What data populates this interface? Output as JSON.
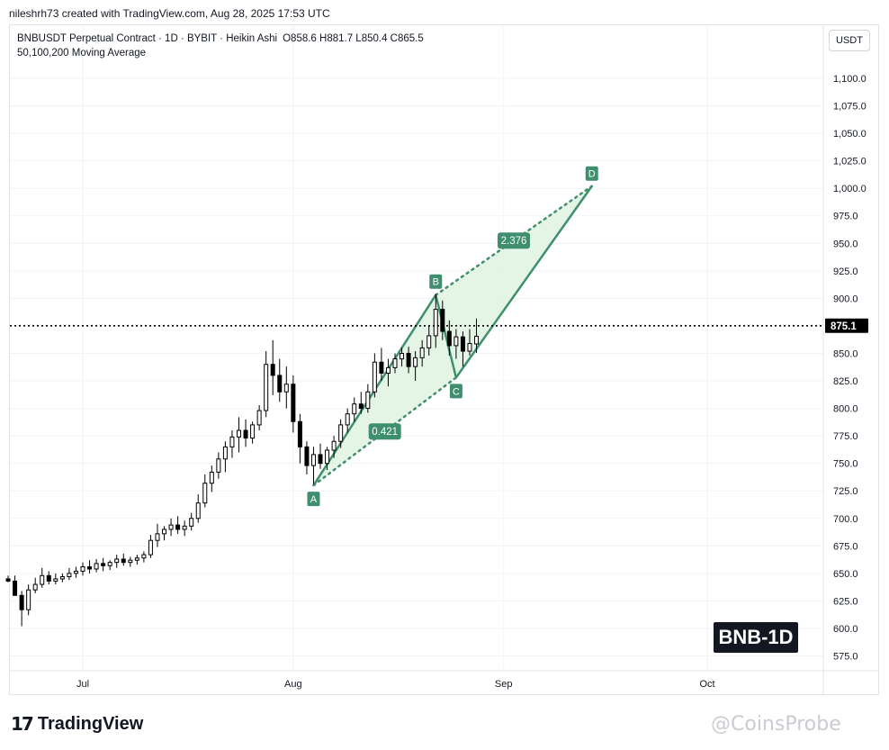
{
  "header": {
    "attribution": "nileshrh73 created with TradingView.com, Aug 28, 2025 17:53 UTC"
  },
  "legend": {
    "symbol_line": "BNBUSDT Perpetual Contract · 1D · BYBIT · Heikin Ashi",
    "ohlc": "O858.6  H881.7  L850.4  C865.5",
    "indicator": "50,100,200 Moving Average"
  },
  "currency_button": "USDT",
  "price_label": "875.1",
  "badge": "BNB-1D",
  "footer": {
    "brand": "TradingView",
    "watermark": "@CoinsProbe"
  },
  "colors": {
    "bull": "#ffffff",
    "bear": "#000000",
    "pattern": "#3f8f6e",
    "pattern_fill": "#dff2df"
  },
  "chart_data": {
    "type": "candlestick",
    "title": "BNBUSDT Perpetual Contract · 1D · BYBIT · Heikin Ashi",
    "y_ticks": [
      "1,100.0",
      "1,075.0",
      "1,050.0",
      "1,025.0",
      "1,000.0",
      "975.0",
      "950.0",
      "925.0",
      "900.0",
      "875.0",
      "850.0",
      "825.0",
      "800.0",
      "775.0",
      "750.0",
      "725.0",
      "700.0",
      "675.0",
      "650.0",
      "625.0",
      "600.0",
      "575.0"
    ],
    "y_tick_values": [
      1100,
      1075,
      1050,
      1025,
      1000,
      975,
      950,
      925,
      900,
      875,
      850,
      825,
      800,
      775,
      750,
      725,
      700,
      675,
      650,
      625,
      600,
      575
    ],
    "x_ticks": [
      "Jul",
      "Aug",
      "Sep",
      "Oct"
    ],
    "x_tick_dates": [
      "2025-07-01",
      "2025-08-01",
      "2025-09-01",
      "2025-10-01"
    ],
    "ylim": [
      562,
      1125
    ],
    "xlim": [
      "2025-06-20",
      "2025-10-25"
    ],
    "current_price": 875.1,
    "candles": [
      {
        "date": "2025-06-20",
        "o": 645,
        "h": 648,
        "l": 642,
        "c": 643
      },
      {
        "date": "2025-06-21",
        "o": 643,
        "h": 648,
        "l": 635,
        "c": 630
      },
      {
        "date": "2025-06-22",
        "o": 630,
        "h": 634,
        "l": 602,
        "c": 617
      },
      {
        "date": "2025-06-23",
        "o": 617,
        "h": 640,
        "l": 612,
        "c": 635
      },
      {
        "date": "2025-06-24",
        "o": 635,
        "h": 646,
        "l": 632,
        "c": 640
      },
      {
        "date": "2025-06-25",
        "o": 640,
        "h": 655,
        "l": 637,
        "c": 648
      },
      {
        "date": "2025-06-26",
        "o": 648,
        "h": 652,
        "l": 640,
        "c": 643
      },
      {
        "date": "2025-06-27",
        "o": 643,
        "h": 650,
        "l": 640,
        "c": 645
      },
      {
        "date": "2025-06-28",
        "o": 645,
        "h": 650,
        "l": 642,
        "c": 647
      },
      {
        "date": "2025-06-29",
        "o": 647,
        "h": 655,
        "l": 644,
        "c": 650
      },
      {
        "date": "2025-06-30",
        "o": 650,
        "h": 656,
        "l": 646,
        "c": 652
      },
      {
        "date": "2025-07-01",
        "o": 652,
        "h": 660,
        "l": 648,
        "c": 656
      },
      {
        "date": "2025-07-02",
        "o": 656,
        "h": 662,
        "l": 650,
        "c": 654
      },
      {
        "date": "2025-07-03",
        "o": 654,
        "h": 663,
        "l": 651,
        "c": 659
      },
      {
        "date": "2025-07-04",
        "o": 659,
        "h": 664,
        "l": 652,
        "c": 657
      },
      {
        "date": "2025-07-05",
        "o": 657,
        "h": 662,
        "l": 653,
        "c": 660
      },
      {
        "date": "2025-07-06",
        "o": 660,
        "h": 667,
        "l": 655,
        "c": 663
      },
      {
        "date": "2025-07-07",
        "o": 663,
        "h": 668,
        "l": 657,
        "c": 660
      },
      {
        "date": "2025-07-08",
        "o": 660,
        "h": 665,
        "l": 656,
        "c": 662
      },
      {
        "date": "2025-07-09",
        "o": 662,
        "h": 667,
        "l": 658,
        "c": 664
      },
      {
        "date": "2025-07-10",
        "o": 664,
        "h": 670,
        "l": 660,
        "c": 667
      },
      {
        "date": "2025-07-11",
        "o": 667,
        "h": 685,
        "l": 664,
        "c": 680
      },
      {
        "date": "2025-07-12",
        "o": 680,
        "h": 695,
        "l": 674,
        "c": 686
      },
      {
        "date": "2025-07-13",
        "o": 686,
        "h": 693,
        "l": 680,
        "c": 690
      },
      {
        "date": "2025-07-14",
        "o": 690,
        "h": 700,
        "l": 684,
        "c": 694
      },
      {
        "date": "2025-07-15",
        "o": 694,
        "h": 702,
        "l": 686,
        "c": 690
      },
      {
        "date": "2025-07-16",
        "o": 690,
        "h": 698,
        "l": 684,
        "c": 693
      },
      {
        "date": "2025-07-17",
        "o": 693,
        "h": 705,
        "l": 689,
        "c": 700
      },
      {
        "date": "2025-07-18",
        "o": 700,
        "h": 722,
        "l": 696,
        "c": 714
      },
      {
        "date": "2025-07-19",
        "o": 714,
        "h": 740,
        "l": 710,
        "c": 732
      },
      {
        "date": "2025-07-20",
        "o": 732,
        "h": 748,
        "l": 724,
        "c": 742
      },
      {
        "date": "2025-07-21",
        "o": 742,
        "h": 760,
        "l": 736,
        "c": 754
      },
      {
        "date": "2025-07-22",
        "o": 754,
        "h": 770,
        "l": 742,
        "c": 765
      },
      {
        "date": "2025-07-23",
        "o": 765,
        "h": 780,
        "l": 755,
        "c": 774
      },
      {
        "date": "2025-07-24",
        "o": 774,
        "h": 792,
        "l": 760,
        "c": 780
      },
      {
        "date": "2025-07-25",
        "o": 780,
        "h": 790,
        "l": 765,
        "c": 773
      },
      {
        "date": "2025-07-26",
        "o": 773,
        "h": 788,
        "l": 768,
        "c": 785
      },
      {
        "date": "2025-07-27",
        "o": 785,
        "h": 803,
        "l": 780,
        "c": 798
      },
      {
        "date": "2025-07-28",
        "o": 798,
        "h": 852,
        "l": 792,
        "c": 840
      },
      {
        "date": "2025-07-29",
        "o": 840,
        "h": 862,
        "l": 812,
        "c": 830
      },
      {
        "date": "2025-07-30",
        "o": 830,
        "h": 845,
        "l": 806,
        "c": 815
      },
      {
        "date": "2025-07-31",
        "o": 815,
        "h": 838,
        "l": 800,
        "c": 822
      },
      {
        "date": "2025-08-01",
        "o": 822,
        "h": 830,
        "l": 778,
        "c": 788
      },
      {
        "date": "2025-08-02",
        "o": 788,
        "h": 795,
        "l": 750,
        "c": 765
      },
      {
        "date": "2025-08-03",
        "o": 765,
        "h": 770,
        "l": 740,
        "c": 748
      },
      {
        "date": "2025-08-04",
        "o": 748,
        "h": 765,
        "l": 731,
        "c": 758
      },
      {
        "date": "2025-08-05",
        "o": 758,
        "h": 768,
        "l": 745,
        "c": 750
      },
      {
        "date": "2025-08-06",
        "o": 750,
        "h": 765,
        "l": 744,
        "c": 762
      },
      {
        "date": "2025-08-07",
        "o": 762,
        "h": 775,
        "l": 755,
        "c": 770
      },
      {
        "date": "2025-08-08",
        "o": 770,
        "h": 790,
        "l": 764,
        "c": 785
      },
      {
        "date": "2025-08-09",
        "o": 785,
        "h": 800,
        "l": 778,
        "c": 795
      },
      {
        "date": "2025-08-10",
        "o": 795,
        "h": 810,
        "l": 788,
        "c": 804
      },
      {
        "date": "2025-08-11",
        "o": 804,
        "h": 815,
        "l": 795,
        "c": 800
      },
      {
        "date": "2025-08-12",
        "o": 800,
        "h": 822,
        "l": 796,
        "c": 815
      },
      {
        "date": "2025-08-13",
        "o": 815,
        "h": 850,
        "l": 810,
        "c": 842
      },
      {
        "date": "2025-08-14",
        "o": 842,
        "h": 855,
        "l": 825,
        "c": 832
      },
      {
        "date": "2025-08-15",
        "o": 832,
        "h": 845,
        "l": 820,
        "c": 837
      },
      {
        "date": "2025-08-16",
        "o": 837,
        "h": 850,
        "l": 832,
        "c": 845
      },
      {
        "date": "2025-08-17",
        "o": 845,
        "h": 855,
        "l": 838,
        "c": 850
      },
      {
        "date": "2025-08-18",
        "o": 850,
        "h": 856,
        "l": 832,
        "c": 838
      },
      {
        "date": "2025-08-19",
        "o": 838,
        "h": 852,
        "l": 825,
        "c": 846
      },
      {
        "date": "2025-08-20",
        "o": 846,
        "h": 862,
        "l": 838,
        "c": 855
      },
      {
        "date": "2025-08-21",
        "o": 855,
        "h": 875,
        "l": 848,
        "c": 866
      },
      {
        "date": "2025-08-22",
        "o": 866,
        "h": 904,
        "l": 855,
        "c": 890
      },
      {
        "date": "2025-08-23",
        "o": 890,
        "h": 898,
        "l": 862,
        "c": 870
      },
      {
        "date": "2025-08-24",
        "o": 870,
        "h": 880,
        "l": 848,
        "c": 857
      },
      {
        "date": "2025-08-25",
        "o": 857,
        "h": 872,
        "l": 845,
        "c": 865
      },
      {
        "date": "2025-08-26",
        "o": 865,
        "h": 870,
        "l": 838,
        "c": 852
      },
      {
        "date": "2025-08-27",
        "o": 852,
        "h": 872,
        "l": 848,
        "c": 859
      },
      {
        "date": "2025-08-28",
        "o": 858.6,
        "h": 881.7,
        "l": 850.4,
        "c": 865.5
      }
    ],
    "harmonic_pattern": {
      "points": [
        {
          "label": "A",
          "date": "2025-08-04",
          "price": 730
        },
        {
          "label": "B",
          "date": "2025-08-22",
          "price": 903
        },
        {
          "label": "C",
          "date": "2025-08-25",
          "price": 828
        },
        {
          "label": "D",
          "date": "2025-09-14",
          "price": 1002
        }
      ],
      "ratios": [
        {
          "label": "0.421"
        },
        {
          "label": "2.376"
        }
      ]
    }
  }
}
